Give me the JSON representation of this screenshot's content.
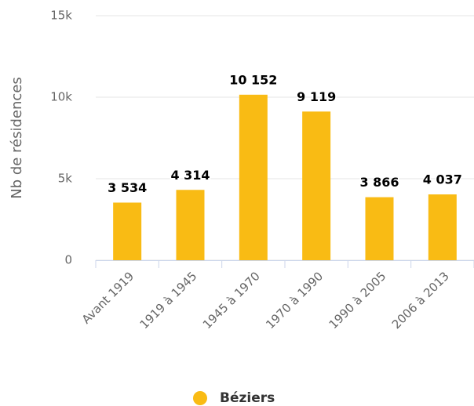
{
  "chart_data": {
    "type": "bar",
    "y_axis_label": "Nb de résidences",
    "categories": [
      "Avant 1919",
      "1919 à 1945",
      "1945 à 1970",
      "1970 à 1990",
      "1990 à 2005",
      "2006 à 2013"
    ],
    "series": [
      {
        "name": "Béziers",
        "color": "#f9bb14",
        "values": [
          3534,
          4314,
          10152,
          9119,
          3866,
          4037
        ],
        "value_labels": [
          "3 534",
          "4 314",
          "10 152",
          "9 119",
          "3 866",
          "4 037"
        ]
      }
    ],
    "ylim": [
      0,
      15000
    ],
    "yticks": [
      0,
      {
        "value": 5000,
        "label": "5k"
      },
      {
        "value": 10000,
        "label": "10k"
      },
      {
        "value": 15000,
        "label": "15k"
      }
    ],
    "grid": true,
    "legend": "bottom"
  }
}
